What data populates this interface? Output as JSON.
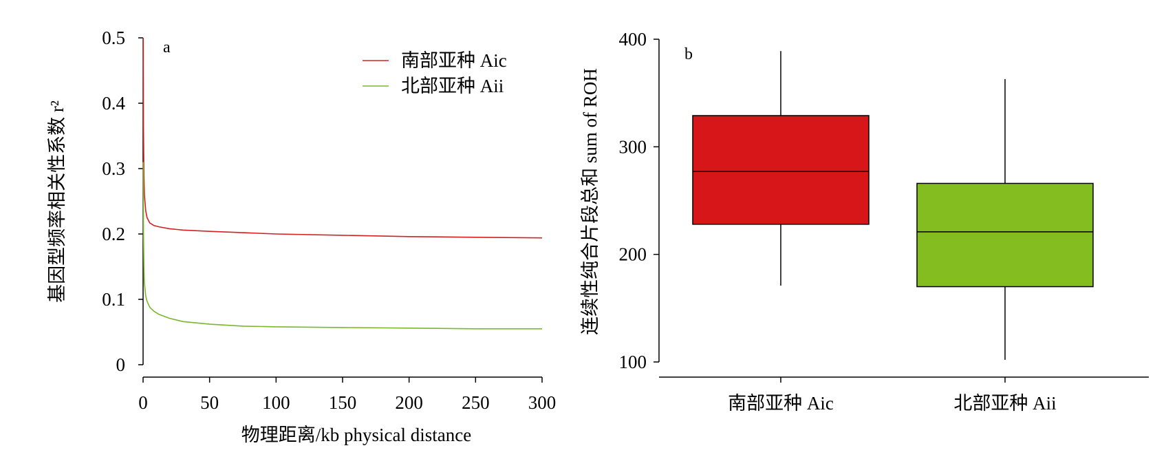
{
  "chart_data": [
    {
      "panel": "a",
      "type": "line",
      "xlabel": "物理距离/kb physical distance",
      "ylabel": "基因型频率相关性系数 r²",
      "xlim": [
        0,
        300
      ],
      "ylim": [
        0,
        0.5
      ],
      "xticks": [
        "0",
        "50",
        "100",
        "150",
        "200",
        "250",
        "300"
      ],
      "yticks": [
        "0",
        "0.1",
        "0.2",
        "0.3",
        "0.4",
        "0.5"
      ],
      "legend_position": "top-right",
      "series": [
        {
          "name": "南部亚种 Aic",
          "color": "#d42020",
          "x": [
            0.1,
            0.3,
            0.6,
            1,
            2,
            3,
            5,
            8,
            12,
            20,
            30,
            50,
            75,
            100,
            150,
            200,
            250,
            300
          ],
          "y": [
            0.5,
            0.36,
            0.29,
            0.26,
            0.235,
            0.225,
            0.217,
            0.213,
            0.211,
            0.208,
            0.206,
            0.204,
            0.202,
            0.2,
            0.198,
            0.196,
            0.195,
            0.194
          ]
        },
        {
          "name": "北部亚种 Aii",
          "color": "#7ab82a",
          "x": [
            0.1,
            0.3,
            0.6,
            1,
            2,
            3,
            5,
            8,
            12,
            20,
            30,
            50,
            75,
            100,
            150,
            200,
            250,
            300
          ],
          "y": [
            0.31,
            0.2,
            0.15,
            0.125,
            0.105,
            0.097,
            0.088,
            0.082,
            0.077,
            0.071,
            0.066,
            0.062,
            0.059,
            0.058,
            0.057,
            0.056,
            0.055,
            0.055
          ]
        }
      ]
    },
    {
      "panel": "b",
      "type": "box",
      "ylabel": "连续性纯合片段总和 sum of ROH",
      "ylim": [
        100,
        400
      ],
      "yticks": [
        "100",
        "200",
        "300",
        "400"
      ],
      "categories": [
        "南部亚种 Aic",
        "北部亚种 Aii"
      ],
      "boxes": [
        {
          "name": "南部亚种 Aic",
          "color": "#d7161a",
          "whisker_low": 171,
          "q1": 228,
          "median": 277,
          "q3": 329,
          "whisker_high": 389
        },
        {
          "name": "北部亚种 Aii",
          "color": "#83bd1f",
          "whisker_low": 102,
          "q1": 170,
          "median": 221,
          "q3": 266,
          "whisker_high": 363
        }
      ]
    }
  ]
}
